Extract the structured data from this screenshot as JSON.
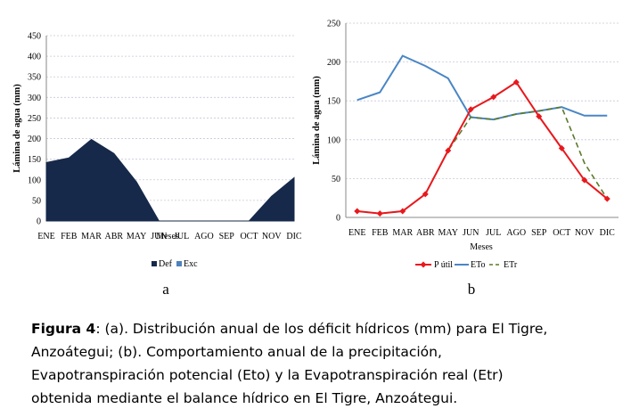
{
  "chart_data": [
    {
      "type": "area",
      "panel_label": "a",
      "title": "",
      "xlabel": "Meses",
      "ylabel": "Lámina de agua  (mm)",
      "categories": [
        "ENE",
        "FEB",
        "MAR",
        "ABR",
        "MAY",
        "JUN",
        "JUL",
        "AGO",
        "SEP",
        "OCT",
        "NOV",
        "DIC"
      ],
      "ylim": [
        0,
        450
      ],
      "yticks": [
        0,
        50,
        100,
        150,
        200,
        250,
        300,
        350,
        400,
        450
      ],
      "grid": true,
      "legend_position": "bottom",
      "series": [
        {
          "name": "Def",
          "color": "#17294a",
          "values": [
            142,
            153,
            198,
            164,
            95,
            0,
            0,
            0,
            0,
            0,
            60,
            105
          ]
        },
        {
          "name": "Exc",
          "color": "#4f81bd",
          "values": [
            0,
            0,
            0,
            0,
            0,
            0,
            0,
            0,
            0,
            0,
            0,
            0
          ]
        }
      ]
    },
    {
      "type": "line",
      "panel_label": "b",
      "title": "",
      "xlabel": "Meses",
      "ylabel": "Lámina de agua (mm)",
      "categories": [
        "ENE",
        "FEB",
        "MAR",
        "ABR",
        "MAY",
        "JUN",
        "JUL",
        "AGO",
        "SEP",
        "OCT",
        "NOV",
        "DIC"
      ],
      "ylim": [
        0,
        250
      ],
      "yticks": [
        0,
        50,
        100,
        150,
        200,
        250
      ],
      "grid": true,
      "legend_position": "bottom",
      "series": [
        {
          "name": "P útil",
          "color": "#e8181d",
          "values": [
            8,
            5,
            8,
            30,
            86,
            139,
            155,
            174,
            130,
            89,
            48,
            24
          ]
        },
        {
          "name": "ETo",
          "color": "#4a86c5",
          "values": [
            151,
            161,
            208,
            195,
            179,
            129,
            126,
            133,
            137,
            142,
            131,
            131
          ]
        },
        {
          "name": "ETr",
          "color": "#5a7a2a",
          "values": [
            8,
            5,
            8,
            30,
            86,
            129,
            126,
            133,
            137,
            142,
            70,
            24
          ]
        }
      ]
    }
  ],
  "caption": {
    "label": "Figura 4",
    "line1_rest": ":  (a). Distribución anual de los déficit hídricos (mm) para El Tigre,",
    "line2": "Anzoátegui; (b). Comportamiento anual de la precipitación,",
    "line3": "Evapotranspiración potencial (Eto) y la  Evapotranspiración real (Etr)",
    "line4": "obtenida mediante el balance hídrico en El Tigre, Anzoátegui."
  }
}
